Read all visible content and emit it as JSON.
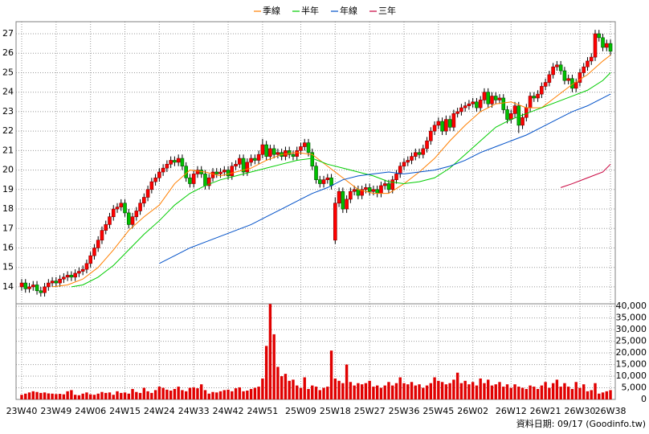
{
  "chart_data": {
    "type": "candlestick",
    "footer": "資料日期: 09/17 (Goodinfo.tw)",
    "up_color": "#ff0000",
    "down_color": "#00c000",
    "volume_color": "#e00000",
    "grid": true,
    "categories": [
      "23W40",
      null,
      null,
      null,
      null,
      null,
      null,
      null,
      null,
      "23W49",
      null,
      null,
      null,
      null,
      null,
      null,
      null,
      null,
      "24W06",
      null,
      null,
      null,
      null,
      null,
      null,
      null,
      null,
      "24W15",
      null,
      null,
      null,
      null,
      null,
      null,
      null,
      null,
      "24W24",
      null,
      null,
      null,
      null,
      null,
      null,
      null,
      null,
      "24W33",
      null,
      null,
      null,
      null,
      null,
      null,
      null,
      null,
      "24W42",
      null,
      null,
      null,
      null,
      null,
      null,
      null,
      null,
      "24W51",
      null,
      null,
      null,
      null,
      null,
      null,
      null,
      null,
      null,
      "25W09",
      null,
      null,
      null,
      null,
      null,
      null,
      null,
      null,
      "25W18",
      null,
      null,
      null,
      null,
      null,
      null,
      null,
      null,
      "25W27",
      null,
      null,
      null,
      null,
      null,
      null,
      null,
      null,
      "25W36",
      null,
      null,
      null,
      null,
      null,
      null,
      null,
      null,
      "25W45",
      null,
      null,
      null,
      null,
      null,
      null,
      null,
      null,
      "26W02",
      null,
      null,
      null,
      null,
      null,
      null,
      null,
      null,
      null,
      "26W12",
      null,
      null,
      null,
      null,
      null,
      null,
      null,
      null,
      "26W21",
      null,
      null,
      null,
      null,
      null,
      null,
      null,
      null,
      "26W30",
      null,
      null,
      null,
      null,
      null,
      null,
      null,
      "26W38"
    ],
    "candles": [
      [
        14.0,
        14.4,
        13.8,
        14.2
      ],
      [
        14.2,
        14.4,
        13.7,
        13.9
      ],
      [
        13.9,
        14.2,
        13.7,
        14.0
      ],
      [
        14.0,
        14.3,
        13.8,
        14.1
      ],
      [
        14.1,
        14.3,
        13.6,
        13.8
      ],
      [
        13.8,
        14.0,
        13.5,
        13.7
      ],
      [
        13.7,
        14.2,
        13.5,
        14.0
      ],
      [
        14.0,
        14.4,
        13.8,
        14.2
      ],
      [
        14.2,
        14.5,
        14.0,
        14.3
      ],
      [
        14.3,
        14.5,
        14.0,
        14.2
      ],
      [
        14.2,
        14.6,
        14.0,
        14.4
      ],
      [
        14.4,
        14.7,
        14.2,
        14.5
      ],
      [
        14.5,
        14.8,
        14.3,
        14.6
      ],
      [
        14.6,
        14.8,
        14.3,
        14.5
      ],
      [
        14.5,
        14.9,
        14.3,
        14.7
      ],
      [
        14.7,
        15.0,
        14.5,
        14.8
      ],
      [
        14.8,
        15.1,
        14.6,
        14.9
      ],
      [
        14.9,
        15.4,
        14.7,
        15.2
      ],
      [
        15.2,
        15.8,
        15.0,
        15.6
      ],
      [
        15.6,
        16.2,
        15.4,
        16.0
      ],
      [
        16.0,
        16.6,
        15.8,
        16.4
      ],
      [
        16.4,
        17.1,
        16.2,
        16.9
      ],
      [
        16.9,
        17.4,
        16.7,
        17.2
      ],
      [
        17.2,
        17.8,
        17.0,
        17.6
      ],
      [
        17.6,
        18.2,
        17.4,
        18.0
      ],
      [
        18.0,
        18.3,
        17.8,
        18.1
      ],
      [
        18.1,
        18.5,
        17.9,
        18.3
      ],
      [
        18.3,
        18.5,
        17.6,
        17.8
      ],
      [
        17.8,
        18.0,
        17.0,
        17.2
      ],
      [
        17.2,
        17.8,
        17.0,
        17.6
      ],
      [
        17.6,
        18.1,
        17.4,
        17.9
      ],
      [
        17.9,
        18.5,
        17.7,
        18.3
      ],
      [
        18.3,
        18.8,
        18.1,
        18.6
      ],
      [
        18.6,
        19.2,
        18.4,
        19.0
      ],
      [
        19.0,
        19.6,
        18.8,
        19.4
      ],
      [
        19.4,
        19.8,
        19.2,
        19.6
      ],
      [
        19.6,
        20.1,
        19.4,
        19.9
      ],
      [
        19.9,
        20.3,
        19.7,
        20.1
      ],
      [
        20.1,
        20.5,
        19.9,
        20.3
      ],
      [
        20.3,
        20.7,
        20.1,
        20.5
      ],
      [
        20.5,
        20.7,
        20.2,
        20.4
      ],
      [
        20.4,
        20.8,
        20.2,
        20.6
      ],
      [
        20.6,
        20.8,
        20.0,
        20.2
      ],
      [
        20.2,
        20.4,
        19.4,
        19.6
      ],
      [
        19.6,
        19.8,
        19.1,
        19.3
      ],
      [
        19.3,
        20.0,
        19.1,
        19.8
      ],
      [
        19.8,
        20.2,
        19.6,
        20.0
      ],
      [
        20.0,
        20.2,
        19.6,
        19.8
      ],
      [
        19.8,
        20.0,
        19.0,
        19.2
      ],
      [
        19.2,
        19.8,
        19.0,
        19.6
      ],
      [
        19.6,
        20.1,
        19.4,
        19.9
      ],
      [
        19.9,
        20.1,
        19.6,
        19.8
      ],
      [
        19.8,
        20.1,
        19.6,
        19.9
      ],
      [
        19.9,
        20.2,
        19.7,
        20.0
      ],
      [
        20.0,
        20.2,
        19.5,
        19.7
      ],
      [
        19.7,
        20.4,
        19.5,
        20.2
      ],
      [
        20.2,
        20.5,
        20.0,
        20.3
      ],
      [
        20.3,
        20.8,
        20.1,
        20.6
      ],
      [
        20.6,
        20.8,
        19.7,
        19.9
      ],
      [
        19.9,
        20.6,
        19.7,
        20.4
      ],
      [
        20.4,
        20.8,
        20.2,
        20.6
      ],
      [
        20.6,
        20.8,
        20.3,
        20.5
      ],
      [
        20.5,
        21.0,
        20.3,
        20.8
      ],
      [
        20.8,
        21.6,
        20.6,
        21.3
      ],
      [
        21.3,
        21.5,
        20.5,
        20.7
      ],
      [
        20.7,
        21.3,
        20.5,
        21.1
      ],
      [
        21.1,
        21.3,
        20.6,
        20.8
      ],
      [
        20.8,
        21.1,
        20.6,
        20.9
      ],
      [
        20.9,
        21.1,
        20.5,
        20.7
      ],
      [
        20.7,
        21.2,
        20.5,
        21.0
      ],
      [
        21.0,
        21.2,
        20.6,
        20.8
      ],
      [
        20.8,
        21.0,
        20.5,
        20.7
      ],
      [
        20.7,
        21.2,
        20.5,
        21.0
      ],
      [
        21.0,
        21.4,
        20.8,
        21.2
      ],
      [
        21.2,
        21.6,
        21.0,
        21.4
      ],
      [
        21.4,
        21.6,
        20.7,
        20.9
      ],
      [
        20.9,
        21.1,
        20.0,
        20.2
      ],
      [
        20.2,
        20.4,
        19.3,
        19.5
      ],
      [
        19.5,
        19.7,
        19.1,
        19.3
      ],
      [
        19.3,
        19.7,
        19.1,
        19.5
      ],
      [
        19.5,
        19.8,
        19.3,
        19.6
      ],
      [
        19.6,
        19.8,
        19.0,
        19.2
      ],
      [
        16.4,
        18.6,
        16.2,
        18.3
      ],
      [
        18.3,
        19.1,
        18.1,
        18.9
      ],
      [
        18.9,
        19.1,
        17.8,
        18.0
      ],
      [
        18.0,
        18.7,
        17.8,
        18.5
      ],
      [
        18.5,
        19.1,
        18.3,
        18.9
      ],
      [
        18.9,
        19.2,
        18.7,
        19.0
      ],
      [
        19.0,
        19.2,
        18.5,
        18.7
      ],
      [
        18.7,
        19.2,
        18.5,
        19.0
      ],
      [
        19.0,
        19.3,
        18.8,
        19.1
      ],
      [
        19.1,
        19.3,
        18.7,
        18.9
      ],
      [
        18.9,
        19.2,
        18.7,
        19.0
      ],
      [
        19.0,
        19.2,
        18.6,
        18.8
      ],
      [
        18.8,
        19.4,
        18.6,
        19.2
      ],
      [
        19.2,
        19.5,
        19.0,
        19.3
      ],
      [
        19.3,
        19.5,
        18.8,
        19.0
      ],
      [
        19.0,
        19.7,
        18.8,
        19.5
      ],
      [
        19.5,
        20.0,
        19.3,
        19.8
      ],
      [
        19.8,
        20.4,
        19.6,
        20.2
      ],
      [
        20.2,
        20.6,
        20.0,
        20.4
      ],
      [
        20.4,
        20.7,
        20.2,
        20.5
      ],
      [
        20.5,
        20.9,
        20.3,
        20.7
      ],
      [
        20.7,
        21.1,
        20.5,
        20.9
      ],
      [
        20.9,
        21.1,
        20.6,
        20.8
      ],
      [
        20.8,
        21.3,
        20.6,
        21.1
      ],
      [
        21.1,
        21.7,
        20.9,
        21.5
      ],
      [
        21.5,
        22.2,
        21.3,
        22.0
      ],
      [
        22.0,
        22.5,
        21.8,
        22.3
      ],
      [
        22.3,
        22.7,
        22.1,
        22.5
      ],
      [
        22.5,
        22.7,
        21.8,
        22.0
      ],
      [
        22.0,
        22.8,
        21.8,
        22.6
      ],
      [
        22.6,
        22.8,
        22.0,
        22.2
      ],
      [
        22.2,
        23.1,
        22.0,
        22.9
      ],
      [
        22.9,
        23.2,
        22.7,
        23.0
      ],
      [
        23.0,
        23.4,
        22.8,
        23.2
      ],
      [
        23.2,
        23.5,
        23.0,
        23.3
      ],
      [
        23.3,
        23.6,
        23.1,
        23.4
      ],
      [
        23.4,
        23.7,
        23.2,
        23.5
      ],
      [
        23.5,
        23.7,
        23.0,
        23.2
      ],
      [
        23.2,
        23.8,
        23.0,
        23.6
      ],
      [
        23.6,
        24.2,
        23.4,
        24.0
      ],
      [
        24.0,
        24.2,
        23.2,
        23.4
      ],
      [
        23.4,
        24.0,
        23.2,
        23.8
      ],
      [
        23.8,
        24.0,
        23.4,
        23.6
      ],
      [
        23.6,
        23.9,
        23.4,
        23.7
      ],
      [
        23.7,
        23.9,
        22.9,
        23.1
      ],
      [
        23.1,
        23.3,
        22.4,
        22.6
      ],
      [
        22.6,
        23.1,
        22.4,
        22.9
      ],
      [
        22.9,
        23.5,
        22.7,
        23.3
      ],
      [
        23.3,
        23.5,
        21.9,
        22.3
      ],
      [
        22.3,
        22.9,
        22.1,
        22.7
      ],
      [
        22.7,
        23.4,
        22.5,
        23.2
      ],
      [
        23.2,
        24.0,
        23.0,
        23.8
      ],
      [
        23.8,
        24.0,
        23.5,
        23.7
      ],
      [
        23.7,
        24.1,
        23.5,
        23.9
      ],
      [
        23.9,
        24.5,
        23.7,
        24.3
      ],
      [
        24.3,
        24.7,
        24.1,
        24.5
      ],
      [
        24.5,
        25.1,
        24.3,
        24.9
      ],
      [
        24.9,
        25.5,
        24.7,
        25.3
      ],
      [
        25.3,
        25.6,
        25.1,
        25.4
      ],
      [
        25.4,
        25.6,
        24.9,
        25.1
      ],
      [
        25.1,
        25.3,
        24.4,
        24.6
      ],
      [
        24.6,
        24.9,
        24.4,
        24.7
      ],
      [
        24.7,
        24.9,
        24.0,
        24.2
      ],
      [
        24.2,
        24.7,
        24.0,
        24.5
      ],
      [
        24.5,
        25.2,
        24.3,
        25.0
      ],
      [
        25.0,
        25.5,
        24.8,
        25.3
      ],
      [
        25.3,
        25.8,
        25.1,
        25.6
      ],
      [
        25.6,
        26.0,
        25.4,
        25.8
      ],
      [
        25.8,
        27.2,
        25.6,
        27.0
      ],
      [
        27.0,
        27.2,
        26.6,
        26.8
      ],
      [
        26.8,
        27.0,
        26.1,
        26.3
      ],
      [
        26.3,
        26.7,
        26.1,
        26.5
      ],
      [
        26.5,
        26.7,
        25.9,
        26.1
      ]
    ],
    "volume": [
      2000,
      2500,
      3000,
      3500,
      3200,
      2800,
      3000,
      2600,
      2500,
      2300,
      2400,
      2200,
      3500,
      4000,
      2000,
      1800,
      2500,
      3000,
      2200,
      2000,
      2500,
      3200,
      2800,
      3000,
      2000,
      3500,
      2800,
      3000,
      2500,
      4500,
      3200,
      2800,
      5000,
      3500,
      2800,
      4000,
      5500,
      5000,
      4200,
      3800,
      4500,
      5500,
      4000,
      3500,
      5000,
      5200,
      4800,
      6500,
      4000,
      2500,
      3200,
      3000,
      3500,
      4000,
      4200,
      3500,
      4800,
      5200,
      3500,
      3800,
      4500,
      5000,
      5500,
      9000,
      23000,
      41000,
      28000,
      14000,
      10000,
      11000,
      8000,
      8500,
      6000,
      5000,
      9500,
      4500,
      6000,
      5500,
      4000,
      5000,
      5500,
      21000,
      9000,
      8000,
      7000,
      15000,
      7500,
      6000,
      7000,
      6500,
      7000,
      8000,
      5500,
      6000,
      5000,
      6000,
      7500,
      6000,
      7000,
      9500,
      7000,
      6500,
      7500,
      6000,
      6500,
      5000,
      6000,
      7000,
      9500,
      8000,
      7500,
      6500,
      7000,
      8500,
      11500,
      7000,
      8000,
      6500,
      7500,
      6000,
      9000,
      7000,
      8500,
      6000,
      6500,
      7500,
      5500,
      6500,
      5000,
      6500,
      5500,
      5000,
      4500,
      6000,
      5500,
      4500,
      6000,
      7500,
      5000,
      7000,
      8500,
      5500,
      7000,
      5500,
      4500,
      7500,
      5000,
      6500,
      3500,
      4000,
      7000,
      2500,
      3000,
      3500,
      4000
    ],
    "series": [
      {
        "name": "季線",
        "color": "#ff7f00",
        "x": [
          8,
          12,
          16,
          20,
          24,
          28,
          32,
          36,
          40,
          44,
          48,
          52,
          56,
          60,
          64,
          68,
          72,
          76,
          80,
          84,
          88,
          92,
          96,
          100,
          104,
          108,
          112,
          116,
          120,
          124,
          128,
          132,
          136,
          140,
          144,
          148,
          152,
          154
        ],
        "values": [
          14.0,
          14.1,
          14.4,
          15.0,
          15.9,
          16.9,
          17.6,
          18.2,
          19.3,
          20.0,
          19.9,
          19.7,
          19.9,
          20.1,
          20.5,
          20.8,
          20.9,
          20.8,
          20.2,
          19.6,
          19.0,
          18.8,
          18.8,
          19.3,
          19.9,
          20.6,
          21.5,
          22.3,
          23.0,
          23.4,
          23.5,
          23.2,
          23.2,
          23.8,
          24.4,
          24.9,
          25.6,
          25.9
        ]
      },
      {
        "name": "半年",
        "color": "#00cc00",
        "x": [
          13,
          16,
          20,
          24,
          28,
          32,
          36,
          40,
          44,
          48,
          52,
          56,
          60,
          64,
          68,
          72,
          76,
          80,
          84,
          88,
          92,
          96,
          100,
          104,
          108,
          112,
          116,
          120,
          124,
          128,
          132,
          136,
          140,
          144,
          148,
          152,
          154
        ],
        "values": [
          14.0,
          14.1,
          14.5,
          15.1,
          15.9,
          16.7,
          17.4,
          18.2,
          18.8,
          19.2,
          19.5,
          19.7,
          19.9,
          20.1,
          20.3,
          20.5,
          20.6,
          20.3,
          20.1,
          19.9,
          19.7,
          19.4,
          19.3,
          19.4,
          19.6,
          20.1,
          20.8,
          21.5,
          22.2,
          22.6,
          22.9,
          23.2,
          23.5,
          23.8,
          24.1,
          24.6,
          25.0
        ]
      },
      {
        "name": "年線",
        "color": "#0050c8",
        "x": [
          36,
          40,
          44,
          48,
          52,
          56,
          60,
          64,
          68,
          72,
          76,
          80,
          84,
          88,
          92,
          96,
          100,
          104,
          108,
          112,
          116,
          120,
          124,
          128,
          132,
          136,
          140,
          144,
          148,
          152,
          154
        ],
        "values": [
          15.2,
          15.6,
          16.0,
          16.3,
          16.6,
          16.9,
          17.2,
          17.6,
          18.0,
          18.4,
          18.8,
          19.1,
          19.5,
          19.7,
          19.8,
          19.9,
          19.8,
          19.9,
          20.0,
          20.2,
          20.5,
          20.9,
          21.2,
          21.5,
          21.8,
          22.2,
          22.6,
          23.0,
          23.3,
          23.7,
          23.9
        ]
      },
      {
        "name": "三年",
        "color": "#c8003c",
        "x": [
          141,
          144,
          148,
          152,
          154
        ],
        "values": [
          19.1,
          19.3,
          19.6,
          19.9,
          20.3
        ]
      }
    ],
    "ylim": [
      13.13,
      27.62
    ],
    "yticks": [
      14,
      15,
      16,
      17,
      18,
      19,
      20,
      21,
      22,
      23,
      24,
      25,
      26,
      27
    ],
    "y2lim": [
      0,
      41100
    ],
    "y2ticks": [
      0,
      {
        "value": 5000,
        "label": "5,000"
      },
      {
        "value": 10000,
        "label": "10,000"
      },
      {
        "value": 15000,
        "label": "15,000"
      },
      {
        "value": 20000,
        "label": "20,000"
      },
      {
        "value": 25000,
        "label": "25,000"
      },
      {
        "value": 30000,
        "label": "30,000"
      },
      {
        "value": 35000,
        "label": "35,000"
      },
      {
        "value": 40000,
        "label": "40,000"
      }
    ]
  }
}
